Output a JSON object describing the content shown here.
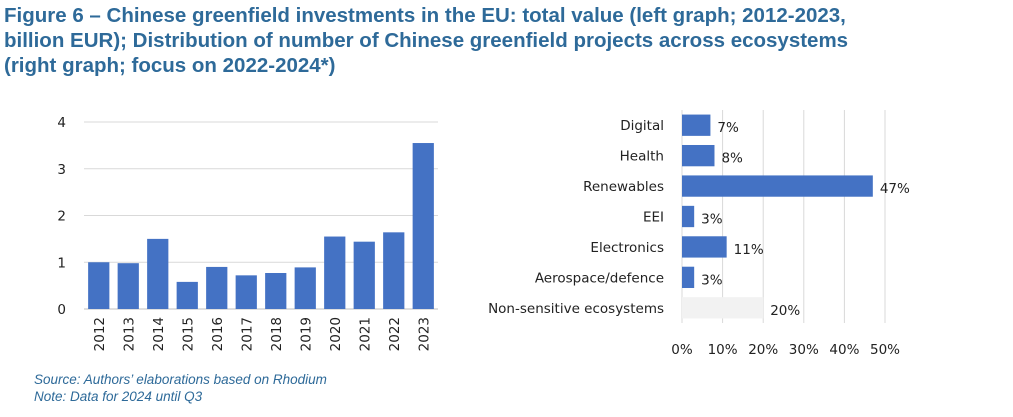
{
  "title": {
    "line1": "Figure 6 – Chinese greenfield investments in the EU: total value (left graph; 2012-2023,",
    "line2": "billion EUR); Distribution of number of Chinese greenfield projects across ecosystems",
    "line3": "(right graph; focus on 2022-2024*)"
  },
  "footer": {
    "source": "Source: Authors’ elaborations based on Rhodium",
    "note": "Note: Data for 2024 until Q3"
  },
  "colors": {
    "bar": "#4472C4",
    "muted_bar": "#F2F2F2",
    "title": "#2E6A99",
    "grid": "#D9D9D9"
  },
  "chart_data": [
    {
      "type": "bar",
      "categories": [
        "2012",
        "2013",
        "2014",
        "2015",
        "2016",
        "2017",
        "2018",
        "2019",
        "2020",
        "2021",
        "2022",
        "2023"
      ],
      "values": [
        1.0,
        0.98,
        1.5,
        0.58,
        0.9,
        0.72,
        0.77,
        0.89,
        1.55,
        1.44,
        1.64,
        3.55
      ],
      "ylim": [
        0,
        4
      ],
      "yticks": [
        "0",
        "1",
        "2",
        "3",
        "4"
      ],
      "grid": true,
      "xlabel": "",
      "ylabel": ""
    },
    {
      "type": "bar",
      "orientation": "horizontal",
      "categories": [
        "Digital",
        "Health",
        "Renewables",
        "EEI",
        "Electronics",
        "Aerospace/defence",
        "Non-sensitive ecosystems"
      ],
      "values": [
        7,
        8,
        47,
        3,
        11,
        3,
        20
      ],
      "labels": [
        "7%",
        "8%",
        "47%",
        "3%",
        "11%",
        "3%",
        "20%"
      ],
      "muted": [
        false,
        false,
        false,
        false,
        false,
        false,
        true
      ],
      "xlim": [
        0,
        50
      ],
      "xticks": [
        "0%",
        "10%",
        "20%",
        "30%",
        "40%",
        "50%"
      ],
      "grid": true,
      "xlabel": "",
      "ylabel": ""
    }
  ]
}
